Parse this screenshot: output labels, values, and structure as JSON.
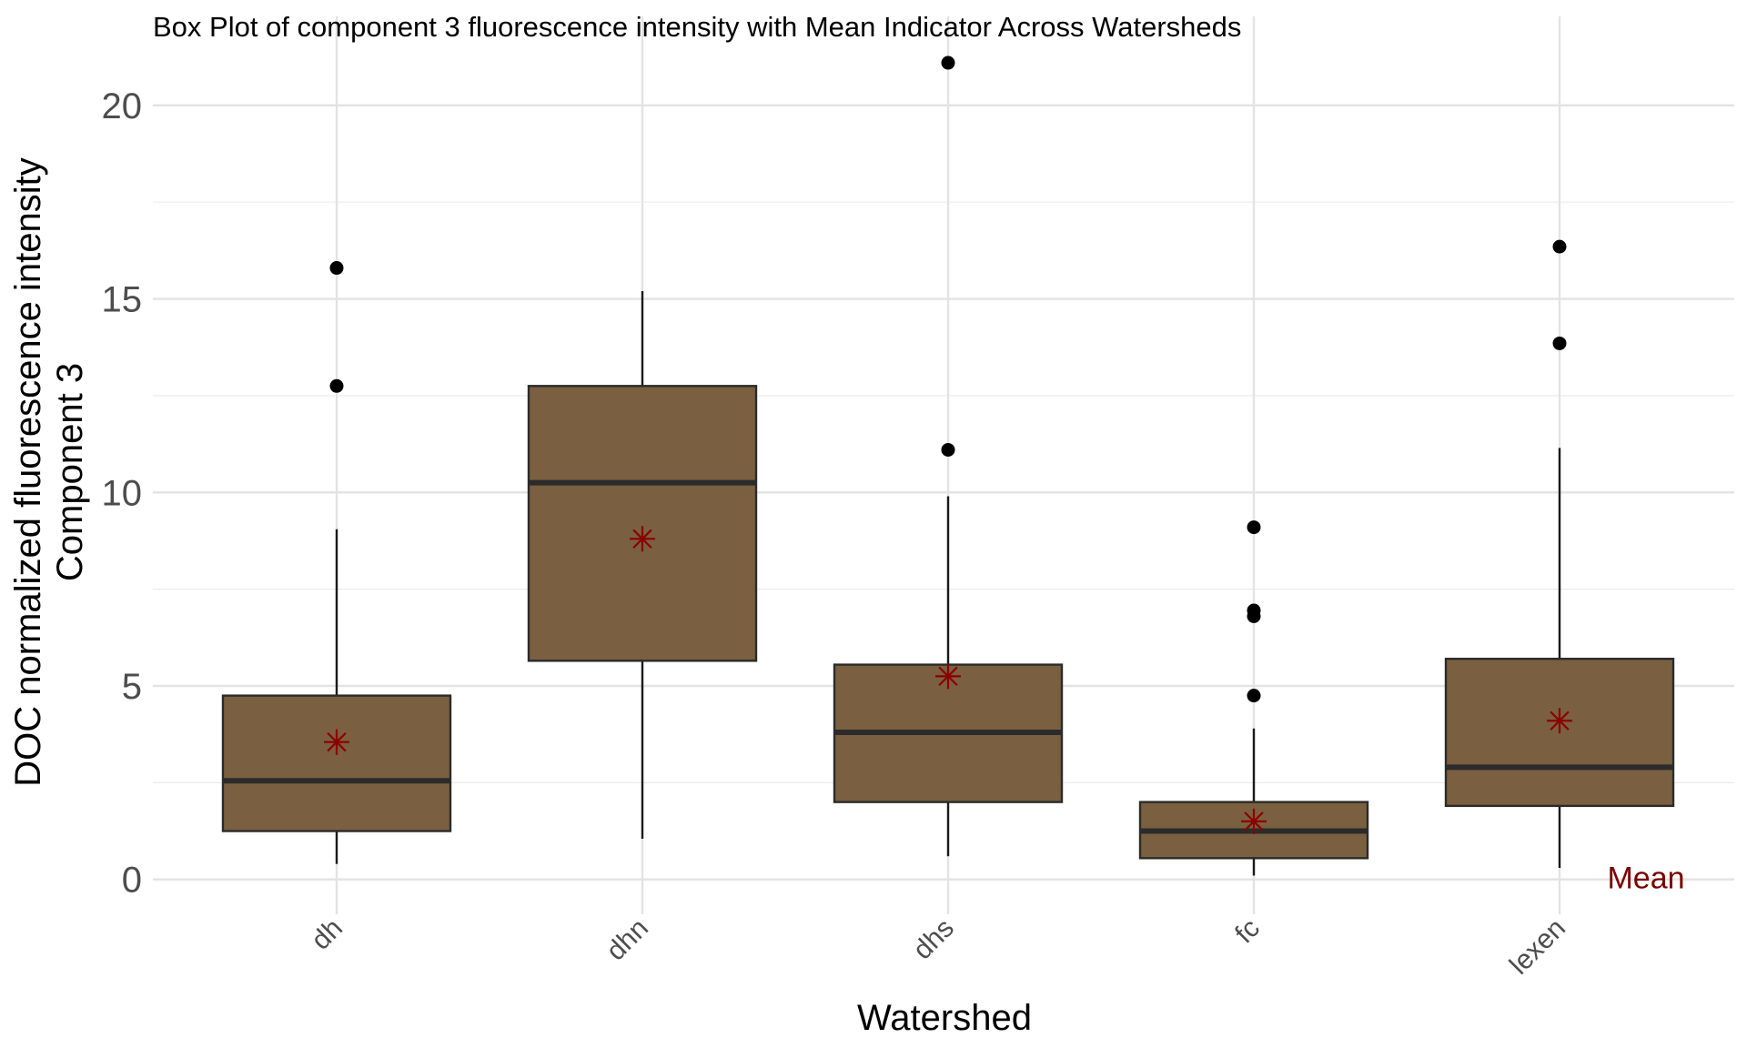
{
  "chart_data": {
    "type": "box",
    "title": "Box Plot of component 3 fluorescence intensity with Mean Indicator Across Watersheds",
    "xlabel": "Watershed",
    "ylabel": [
      "DOC normalized fluorescence intensity",
      "Component 3"
    ],
    "ylim": [
      -0.9,
      22.3
    ],
    "yticks": [
      0,
      5,
      10,
      15,
      20
    ],
    "grid": true,
    "box_color": "#7a6040",
    "mean_color": "#8b0000",
    "annotation": "Mean",
    "categories": [
      "dh",
      "dhn",
      "dhs",
      "fc",
      "lexen"
    ],
    "boxes": [
      {
        "name": "dh",
        "whisker_low": 0.4,
        "q1": 1.25,
        "median": 2.55,
        "q3": 4.75,
        "whisker_high": 9.05,
        "mean": 3.55,
        "outliers": [
          12.75,
          15.8
        ]
      },
      {
        "name": "dhn",
        "whisker_low": 1.05,
        "q1": 5.65,
        "median": 10.25,
        "q3": 12.75,
        "whisker_high": 15.2,
        "mean": 8.8,
        "outliers": []
      },
      {
        "name": "dhs",
        "whisker_low": 0.6,
        "q1": 2.0,
        "median": 3.8,
        "q3": 5.55,
        "whisker_high": 9.9,
        "mean": 5.25,
        "outliers": [
          11.1,
          21.1
        ]
      },
      {
        "name": "fc",
        "whisker_low": 0.1,
        "q1": 0.55,
        "median": 1.25,
        "q3": 2.0,
        "whisker_high": 3.9,
        "mean": 1.5,
        "outliers": [
          4.75,
          6.8,
          6.95,
          9.1
        ]
      },
      {
        "name": "lexen",
        "whisker_low": 0.3,
        "q1": 1.9,
        "median": 2.9,
        "q3": 5.7,
        "whisker_high": 11.15,
        "mean": 4.1,
        "outliers": [
          13.85,
          16.35
        ]
      }
    ]
  }
}
